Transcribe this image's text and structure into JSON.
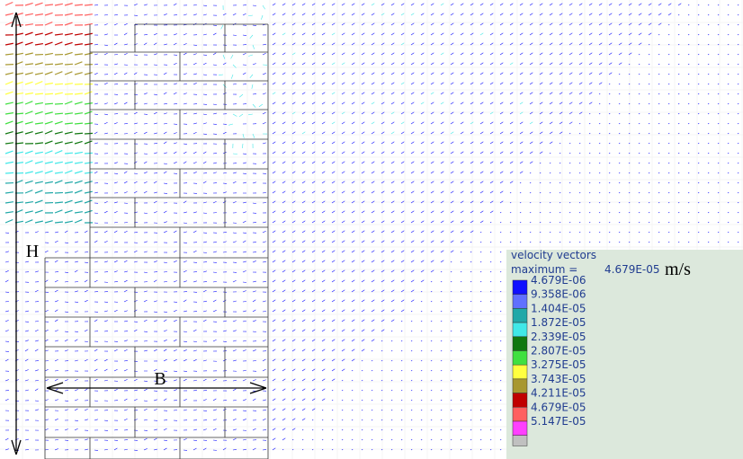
{
  "labels": {
    "height": "H",
    "width": "B"
  },
  "legend": {
    "title": "velocity vectors",
    "maximum_label": "maximum =",
    "maximum": "4.679E-05",
    "unit": "m/s",
    "entries": [
      {
        "label": "4.679E-06",
        "color": "#1010ff"
      },
      {
        "label": "9.358E-06",
        "color": "#6070ff"
      },
      {
        "label": "1.404E-05",
        "color": "#20a8a8"
      },
      {
        "label": "1.872E-05",
        "color": "#40e8e8"
      },
      {
        "label": "2.339E-05",
        "color": "#107810"
      },
      {
        "label": "2.807E-05",
        "color": "#40e040"
      },
      {
        "label": "3.275E-05",
        "color": "#ffff40"
      },
      {
        "label": "3.743E-05",
        "color": "#a89830"
      },
      {
        "label": "4.211E-05",
        "color": "#c00000"
      },
      {
        "label": "4.679E-05",
        "color": "#ff6060"
      },
      {
        "label": "5.147E-05",
        "color": "#ff40ff"
      }
    ],
    "last_color": "#c0c0c0"
  }
}
